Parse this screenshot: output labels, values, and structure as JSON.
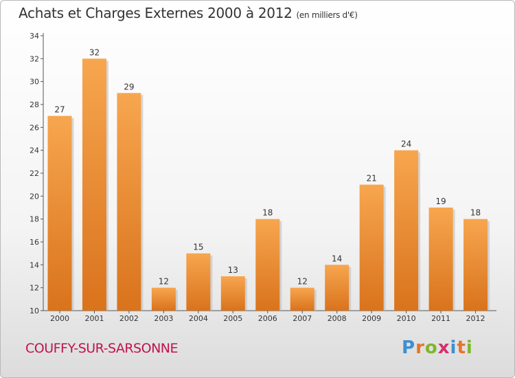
{
  "title": "Achats et Charges Externes 2000 à 2012",
  "subtitle": "(en milliers d'€)",
  "commune": "COUFFY-SUR-SARSONNE",
  "brand": {
    "letters": [
      "P",
      "r",
      "o",
      "x",
      "i",
      "t",
      "i"
    ],
    "colors": [
      "#3d8fd4",
      "#e8732a",
      "#7fb62c",
      "#d62f6b",
      "#3d8fd4",
      "#e8732a",
      "#7fb62c"
    ]
  },
  "colors": {
    "bar_top": "#f7a64f",
    "bar_bottom": "#d9731c",
    "commune": "#c0134d"
  },
  "chart_data": {
    "type": "bar",
    "categories": [
      "2000",
      "2001",
      "2002",
      "2003",
      "2004",
      "2005",
      "2006",
      "2007",
      "2008",
      "2009",
      "2010",
      "2011",
      "2012"
    ],
    "values": [
      27,
      32,
      29,
      12,
      15,
      13,
      18,
      12,
      14,
      21,
      24,
      19,
      18
    ],
    "ylim": [
      10,
      34
    ],
    "yticks": [
      10,
      12,
      14,
      16,
      18,
      20,
      22,
      24,
      26,
      28,
      30,
      32,
      34
    ],
    "grid": false,
    "legend": "none"
  }
}
